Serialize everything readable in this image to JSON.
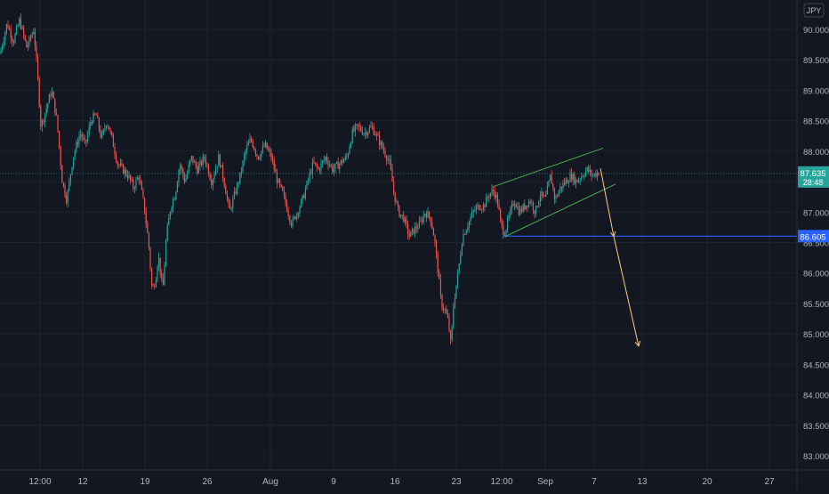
{
  "currency_badge": "JPY",
  "price_tag": {
    "value": "87.635",
    "countdown": "28:48"
  },
  "level_tag": "86.605",
  "colors": {
    "background": "#131722",
    "grid": "#1e2230",
    "up": "#26a69a",
    "down": "#ef5350",
    "axis_text": "#b2b5be",
    "channel": "#4caf50",
    "level_line": "#2962ff",
    "projection": "#ffcc80",
    "price_tag_bg": "#26a69a"
  },
  "chart_data": {
    "type": "candlestick",
    "y_ticks": [
      "90.000",
      "89.500",
      "89.000",
      "88.500",
      "88.000",
      "87.500",
      "87.000",
      "86.500",
      "86.000",
      "85.500",
      "85.000",
      "84.500",
      "84.000",
      "83.500",
      "83.000"
    ],
    "x_ticks": [
      "12:00",
      "12",
      "19",
      "26",
      "Aug",
      "9",
      "16",
      "23",
      "12:00",
      "Sep",
      "7",
      "13",
      "20",
      "27"
    ],
    "ylim": [
      82.9,
      90.3
    ],
    "price_path": [
      [
        0,
        89.6
      ],
      [
        8,
        90.1
      ],
      [
        15,
        89.8
      ],
      [
        22,
        90.15
      ],
      [
        30,
        89.7
      ],
      [
        38,
        90.0
      ],
      [
        42,
        89.3
      ],
      [
        46,
        88.4
      ],
      [
        52,
        88.7
      ],
      [
        58,
        89.0
      ],
      [
        64,
        88.5
      ],
      [
        70,
        87.5
      ],
      [
        75,
        87.2
      ],
      [
        82,
        87.9
      ],
      [
        90,
        88.3
      ],
      [
        96,
        88.1
      ],
      [
        102,
        88.5
      ],
      [
        108,
        88.6
      ],
      [
        114,
        88.2
      ],
      [
        120,
        88.5
      ],
      [
        126,
        88.2
      ],
      [
        132,
        87.8
      ],
      [
        138,
        87.7
      ],
      [
        144,
        87.6
      ],
      [
        150,
        87.4
      ],
      [
        156,
        87.6
      ],
      [
        162,
        87.1
      ],
      [
        167,
        86.5
      ],
      [
        171,
        85.7
      ],
      [
        175,
        85.9
      ],
      [
        178,
        86.3
      ],
      [
        183,
        85.7
      ],
      [
        187,
        86.6
      ],
      [
        192,
        87.1
      ],
      [
        197,
        87.3
      ],
      [
        202,
        87.8
      ],
      [
        208,
        87.5
      ],
      [
        215,
        87.9
      ],
      [
        222,
        87.7
      ],
      [
        230,
        87.9
      ],
      [
        238,
        87.5
      ],
      [
        246,
        87.9
      ],
      [
        252,
        87.5
      ],
      [
        258,
        87.0
      ],
      [
        264,
        87.3
      ],
      [
        270,
        87.6
      ],
      [
        276,
        88.0
      ],
      [
        282,
        88.2
      ],
      [
        290,
        87.9
      ],
      [
        298,
        88.1
      ],
      [
        305,
        87.9
      ],
      [
        312,
        87.5
      ],
      [
        318,
        87.3
      ],
      [
        324,
        87.0
      ],
      [
        328,
        86.8
      ],
      [
        334,
        87.0
      ],
      [
        340,
        87.2
      ],
      [
        346,
        87.5
      ],
      [
        352,
        87.8
      ],
      [
        358,
        87.7
      ],
      [
        366,
        87.9
      ],
      [
        374,
        87.7
      ],
      [
        382,
        87.8
      ],
      [
        390,
        87.9
      ],
      [
        396,
        88.3
      ],
      [
        402,
        88.4
      ],
      [
        410,
        88.3
      ],
      [
        418,
        88.4
      ],
      [
        425,
        88.2
      ],
      [
        432,
        88.0
      ],
      [
        438,
        87.8
      ],
      [
        443,
        87.3
      ],
      [
        448,
        87.0
      ],
      [
        454,
        86.9
      ],
      [
        460,
        86.6
      ],
      [
        465,
        86.7
      ],
      [
        472,
        86.8
      ],
      [
        478,
        87.0
      ],
      [
        484,
        86.9
      ],
      [
        488,
        86.6
      ],
      [
        492,
        86.1
      ],
      [
        496,
        85.5
      ],
      [
        500,
        85.4
      ],
      [
        504,
        85.2
      ],
      [
        507,
        84.8
      ],
      [
        510,
        85.5
      ],
      [
        515,
        86.0
      ],
      [
        520,
        86.6
      ],
      [
        526,
        86.8
      ],
      [
        532,
        87.0
      ],
      [
        538,
        87.1
      ],
      [
        544,
        87.1
      ],
      [
        550,
        87.3
      ],
      [
        555,
        87.35
      ],
      [
        559,
        87.2
      ],
      [
        563,
        86.8
      ],
      [
        567,
        86.65
      ],
      [
        572,
        86.9
      ],
      [
        578,
        87.2
      ],
      [
        584,
        87.0
      ],
      [
        590,
        87.1
      ],
      [
        596,
        87.2
      ],
      [
        602,
        87.0
      ],
      [
        607,
        87.3
      ],
      [
        613,
        87.2
      ],
      [
        619,
        87.6
      ],
      [
        624,
        87.2
      ],
      [
        630,
        87.4
      ],
      [
        636,
        87.5
      ],
      [
        642,
        87.6
      ],
      [
        648,
        87.5
      ],
      [
        654,
        87.6
      ],
      [
        660,
        87.7
      ],
      [
        666,
        87.6
      ],
      [
        672,
        87.65
      ]
    ],
    "channel_upper": [
      [
        555,
        87.42
      ],
      [
        678,
        88.05
      ]
    ],
    "channel_lower": [
      [
        568,
        86.6
      ],
      [
        692,
        87.46
      ]
    ],
    "resistance_level": 86.605,
    "projection": [
      [
        675,
        87.72
      ],
      [
        690,
        86.6
      ],
      [
        718,
        84.8
      ]
    ]
  }
}
